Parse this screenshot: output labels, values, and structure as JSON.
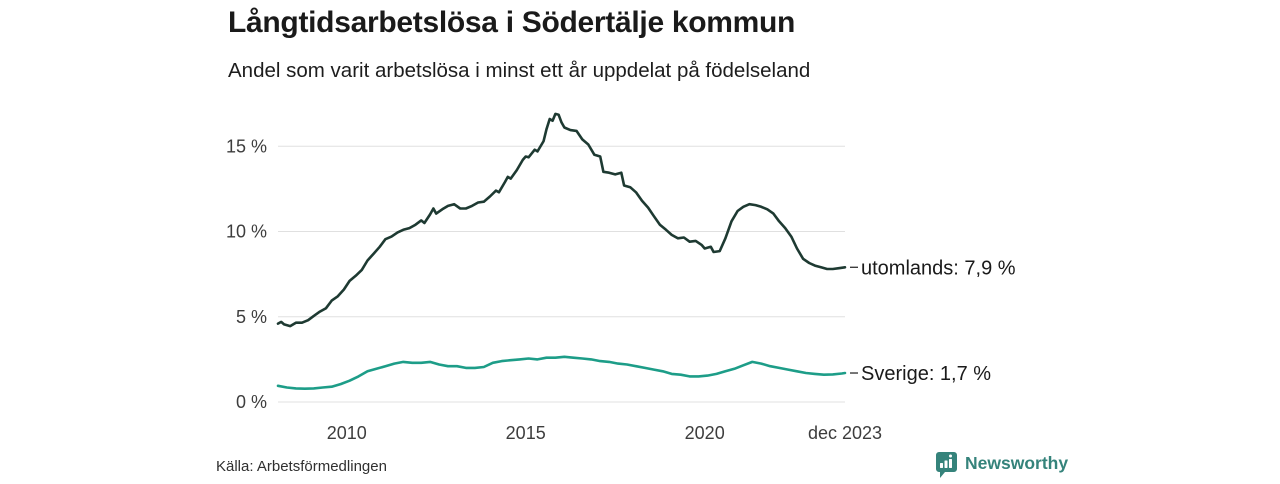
{
  "header": {
    "title": "Långtidsarbetslösa i Södertälje kommun",
    "subtitle": "Andel som varit arbetslösa i minst ett år uppdelat på födelseland"
  },
  "chart_data": {
    "type": "line",
    "title": "Långtidsarbetslösa i Södertälje kommun",
    "subtitle": "Andel som varit arbetslösa i minst ett år uppdelat på födelseland",
    "grid": true,
    "x_axis": {
      "range": [
        2008.08,
        2023.92
      ],
      "ticks": [
        {
          "label": "2010",
          "x": 2010
        },
        {
          "label": "2015",
          "x": 2015
        },
        {
          "label": "2020",
          "x": 2020
        },
        {
          "label": "dec 2023",
          "x": 2023.92
        }
      ]
    },
    "y_axis": {
      "unit": "%",
      "range": [
        0,
        17.5
      ],
      "ticks": [
        {
          "label": "0 %",
          "value": 0
        },
        {
          "label": "5 %",
          "value": 5
        },
        {
          "label": "10 %",
          "value": 10
        },
        {
          "label": "15 %",
          "value": 15
        }
      ]
    },
    "series": [
      {
        "name": "utomlands",
        "color": "#1e3a32",
        "end_label": "utomlands: 7,9 %",
        "end_value": "7,9 %",
        "points": [
          [
            2008.08,
            4.6
          ],
          [
            2008.17,
            4.7
          ],
          [
            2008.25,
            4.55
          ],
          [
            2008.42,
            4.45
          ],
          [
            2008.58,
            4.65
          ],
          [
            2008.75,
            4.65
          ],
          [
            2008.92,
            4.8
          ],
          [
            2009.08,
            5.05
          ],
          [
            2009.25,
            5.3
          ],
          [
            2009.42,
            5.5
          ],
          [
            2009.58,
            5.95
          ],
          [
            2009.75,
            6.2
          ],
          [
            2009.92,
            6.6
          ],
          [
            2010.08,
            7.1
          ],
          [
            2010.25,
            7.4
          ],
          [
            2010.42,
            7.75
          ],
          [
            2010.58,
            8.3
          ],
          [
            2010.75,
            8.7
          ],
          [
            2010.92,
            9.1
          ],
          [
            2011.08,
            9.55
          ],
          [
            2011.25,
            9.7
          ],
          [
            2011.42,
            9.95
          ],
          [
            2011.58,
            10.1
          ],
          [
            2011.75,
            10.2
          ],
          [
            2011.92,
            10.4
          ],
          [
            2012.08,
            10.65
          ],
          [
            2012.17,
            10.5
          ],
          [
            2012.33,
            11.0
          ],
          [
            2012.42,
            11.35
          ],
          [
            2012.5,
            11.05
          ],
          [
            2012.67,
            11.3
          ],
          [
            2012.83,
            11.5
          ],
          [
            2013.0,
            11.6
          ],
          [
            2013.17,
            11.35
          ],
          [
            2013.33,
            11.35
          ],
          [
            2013.5,
            11.5
          ],
          [
            2013.67,
            11.7
          ],
          [
            2013.83,
            11.75
          ],
          [
            2014.0,
            12.05
          ],
          [
            2014.17,
            12.4
          ],
          [
            2014.25,
            12.3
          ],
          [
            2014.42,
            12.9
          ],
          [
            2014.5,
            13.2
          ],
          [
            2014.58,
            13.1
          ],
          [
            2014.75,
            13.6
          ],
          [
            2014.92,
            14.2
          ],
          [
            2015.0,
            14.4
          ],
          [
            2015.08,
            14.35
          ],
          [
            2015.25,
            14.8
          ],
          [
            2015.33,
            14.7
          ],
          [
            2015.5,
            15.3
          ],
          [
            2015.58,
            16.0
          ],
          [
            2015.67,
            16.6
          ],
          [
            2015.75,
            16.5
          ],
          [
            2015.83,
            16.9
          ],
          [
            2015.92,
            16.85
          ],
          [
            2016.0,
            16.4
          ],
          [
            2016.08,
            16.1
          ],
          [
            2016.25,
            15.95
          ],
          [
            2016.42,
            15.9
          ],
          [
            2016.58,
            15.4
          ],
          [
            2016.75,
            15.1
          ],
          [
            2016.92,
            14.5
          ],
          [
            2017.08,
            14.4
          ],
          [
            2017.17,
            13.5
          ],
          [
            2017.33,
            13.45
          ],
          [
            2017.5,
            13.35
          ],
          [
            2017.67,
            13.45
          ],
          [
            2017.75,
            12.7
          ],
          [
            2017.92,
            12.6
          ],
          [
            2018.08,
            12.3
          ],
          [
            2018.25,
            11.8
          ],
          [
            2018.42,
            11.4
          ],
          [
            2018.58,
            10.9
          ],
          [
            2018.75,
            10.4
          ],
          [
            2018.92,
            10.1
          ],
          [
            2019.08,
            9.8
          ],
          [
            2019.25,
            9.6
          ],
          [
            2019.42,
            9.65
          ],
          [
            2019.58,
            9.4
          ],
          [
            2019.75,
            9.45
          ],
          [
            2019.92,
            9.2
          ],
          [
            2020.0,
            9.0
          ],
          [
            2020.17,
            9.1
          ],
          [
            2020.25,
            8.8
          ],
          [
            2020.42,
            8.85
          ],
          [
            2020.58,
            9.6
          ],
          [
            2020.75,
            10.6
          ],
          [
            2020.92,
            11.2
          ],
          [
            2021.08,
            11.45
          ],
          [
            2021.25,
            11.6
          ],
          [
            2021.42,
            11.55
          ],
          [
            2021.58,
            11.45
          ],
          [
            2021.75,
            11.3
          ],
          [
            2021.92,
            11.05
          ],
          [
            2022.08,
            10.6
          ],
          [
            2022.25,
            10.2
          ],
          [
            2022.42,
            9.7
          ],
          [
            2022.58,
            9.0
          ],
          [
            2022.75,
            8.4
          ],
          [
            2022.92,
            8.15
          ],
          [
            2023.08,
            8.0
          ],
          [
            2023.25,
            7.9
          ],
          [
            2023.42,
            7.8
          ],
          [
            2023.58,
            7.8
          ],
          [
            2023.75,
            7.85
          ],
          [
            2023.92,
            7.9
          ]
        ]
      },
      {
        "name": "Sverige",
        "color": "#1d9d88",
        "end_label": "Sverige: 1,7 %",
        "end_value": "1,7 %",
        "points": [
          [
            2008.08,
            0.95
          ],
          [
            2008.33,
            0.85
          ],
          [
            2008.58,
            0.8
          ],
          [
            2008.83,
            0.78
          ],
          [
            2009.08,
            0.8
          ],
          [
            2009.33,
            0.85
          ],
          [
            2009.58,
            0.9
          ],
          [
            2009.83,
            1.05
          ],
          [
            2010.08,
            1.25
          ],
          [
            2010.33,
            1.5
          ],
          [
            2010.58,
            1.8
          ],
          [
            2010.83,
            1.95
          ],
          [
            2011.08,
            2.1
          ],
          [
            2011.33,
            2.25
          ],
          [
            2011.58,
            2.35
          ],
          [
            2011.83,
            2.3
          ],
          [
            2012.08,
            2.3
          ],
          [
            2012.33,
            2.35
          ],
          [
            2012.58,
            2.2
          ],
          [
            2012.83,
            2.1
          ],
          [
            2013.08,
            2.1
          ],
          [
            2013.33,
            2.0
          ],
          [
            2013.58,
            2.0
          ],
          [
            2013.83,
            2.05
          ],
          [
            2014.08,
            2.3
          ],
          [
            2014.33,
            2.4
          ],
          [
            2014.58,
            2.45
          ],
          [
            2014.83,
            2.5
          ],
          [
            2015.08,
            2.55
          ],
          [
            2015.33,
            2.5
          ],
          [
            2015.58,
            2.6
          ],
          [
            2015.83,
            2.6
          ],
          [
            2016.08,
            2.65
          ],
          [
            2016.33,
            2.6
          ],
          [
            2016.58,
            2.55
          ],
          [
            2016.83,
            2.5
          ],
          [
            2017.08,
            2.4
          ],
          [
            2017.33,
            2.35
          ],
          [
            2017.58,
            2.25
          ],
          [
            2017.83,
            2.2
          ],
          [
            2018.08,
            2.1
          ],
          [
            2018.33,
            2.0
          ],
          [
            2018.58,
            1.9
          ],
          [
            2018.83,
            1.8
          ],
          [
            2019.08,
            1.65
          ],
          [
            2019.33,
            1.6
          ],
          [
            2019.58,
            1.5
          ],
          [
            2019.83,
            1.5
          ],
          [
            2020.08,
            1.55
          ],
          [
            2020.33,
            1.65
          ],
          [
            2020.58,
            1.8
          ],
          [
            2020.83,
            1.95
          ],
          [
            2021.08,
            2.15
          ],
          [
            2021.33,
            2.35
          ],
          [
            2021.58,
            2.25
          ],
          [
            2021.83,
            2.1
          ],
          [
            2022.08,
            2.0
          ],
          [
            2022.33,
            1.9
          ],
          [
            2022.58,
            1.8
          ],
          [
            2022.83,
            1.7
          ],
          [
            2023.08,
            1.65
          ],
          [
            2023.33,
            1.6
          ],
          [
            2023.58,
            1.62
          ],
          [
            2023.83,
            1.67
          ],
          [
            2023.92,
            1.7
          ]
        ]
      }
    ]
  },
  "footer": {
    "source": "Källa: Arbetsförmedlingen",
    "brand": "Newsworthy",
    "brand_color": "#35837b"
  }
}
